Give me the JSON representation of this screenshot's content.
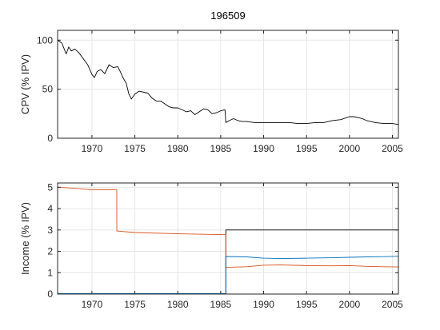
{
  "figure": {
    "title": "196509",
    "background": "#ffffff",
    "grid_color": "#e6e6e6",
    "axis_color": "#262626"
  },
  "chart_data": [
    {
      "type": "line",
      "title": "196509",
      "xlabel": "",
      "ylabel": "CPV (% IPV)",
      "xlim": [
        1966,
        2005.7
      ],
      "ylim": [
        0,
        110
      ],
      "xticks": [
        1970,
        1975,
        1980,
        1985,
        1990,
        1995,
        2000,
        2005
      ],
      "yticks": [
        0,
        50,
        100
      ],
      "grid": true,
      "series": [
        {
          "color": "#000000",
          "x": [
            1966.0,
            1966.5,
            1967.0,
            1967.3,
            1967.6,
            1968.0,
            1968.5,
            1969.0,
            1969.5,
            1970.0,
            1970.3,
            1970.6,
            1971.0,
            1971.5,
            1972.0,
            1972.5,
            1973.0,
            1973.3,
            1973.6,
            1974.0,
            1974.3,
            1974.6,
            1975.0,
            1975.5,
            1976.0,
            1976.5,
            1977.0,
            1977.5,
            1978.0,
            1978.5,
            1979.0,
            1979.5,
            1980.0,
            1980.5,
            1981.0,
            1981.5,
            1982.0,
            1982.5,
            1983.0,
            1983.5,
            1984.0,
            1984.5,
            1985.0,
            1985.5,
            1985.6,
            1986.0,
            1986.5,
            1987.0,
            1987.5,
            1988.0,
            1989.0,
            1990.0,
            1991.0,
            1992.0,
            1993.0,
            1994.0,
            1995.0,
            1996.0,
            1997.0,
            1998.0,
            1999.0,
            2000.0,
            2000.5,
            2001.0,
            2001.5,
            2002.0,
            2002.5,
            2003.0,
            2004.0,
            2005.0,
            2005.7
          ],
          "y": [
            100,
            97,
            86,
            93,
            89,
            91,
            87,
            81,
            75,
            65,
            62,
            68,
            70,
            66,
            75,
            72,
            73,
            68,
            62,
            56,
            45,
            40,
            45,
            48,
            47,
            46,
            41,
            38,
            38,
            35,
            32,
            31,
            31,
            29,
            27,
            28,
            24,
            27,
            30,
            29,
            25,
            26,
            28,
            29,
            16,
            18,
            20,
            18,
            17,
            17,
            16,
            16,
            16,
            16,
            16,
            15,
            15,
            16,
            16,
            18,
            19,
            22,
            22,
            21,
            20,
            18,
            17,
            16,
            15,
            15,
            14
          ]
        }
      ]
    },
    {
      "type": "line",
      "title": "",
      "xlabel": "",
      "ylabel": "Income (% IPV)",
      "xlim": [
        1966,
        2005.7
      ],
      "ylim": [
        0,
        5.2
      ],
      "xticks": [
        1970,
        1975,
        1980,
        1985,
        1990,
        1995,
        2000,
        2005
      ],
      "yticks": [
        0,
        1,
        2,
        3,
        4,
        5
      ],
      "grid": true,
      "series": [
        {
          "color": "#000000",
          "x": [
            1966.0,
            1985.6,
            1985.6,
            2005.7
          ],
          "y": [
            0,
            0,
            3.0,
            3.0
          ]
        },
        {
          "color": "#d95319",
          "x": [
            1966.0,
            1968.0,
            1970.0,
            1972.9,
            1972.9,
            1975.0,
            1980.0,
            1985.6,
            1985.6,
            1988.0,
            1990.0,
            1992.0,
            1995.0,
            1998.0,
            2000.0,
            2002.0,
            2004.0,
            2005.7
          ],
          "y": [
            5.0,
            4.95,
            4.88,
            4.88,
            2.95,
            2.88,
            2.82,
            2.78,
            1.25,
            1.28,
            1.35,
            1.36,
            1.33,
            1.32,
            1.33,
            1.3,
            1.28,
            1.27
          ]
        },
        {
          "color": "#0072bd",
          "x": [
            1966.0,
            1985.6,
            1985.6,
            1988.0,
            1990.0,
            1992.0,
            1995.0,
            1998.0,
            2000.0,
            2002.0,
            2004.0,
            2005.7
          ],
          "y": [
            0.02,
            0.02,
            1.76,
            1.74,
            1.68,
            1.66,
            1.68,
            1.7,
            1.72,
            1.74,
            1.75,
            1.77
          ]
        }
      ]
    }
  ]
}
